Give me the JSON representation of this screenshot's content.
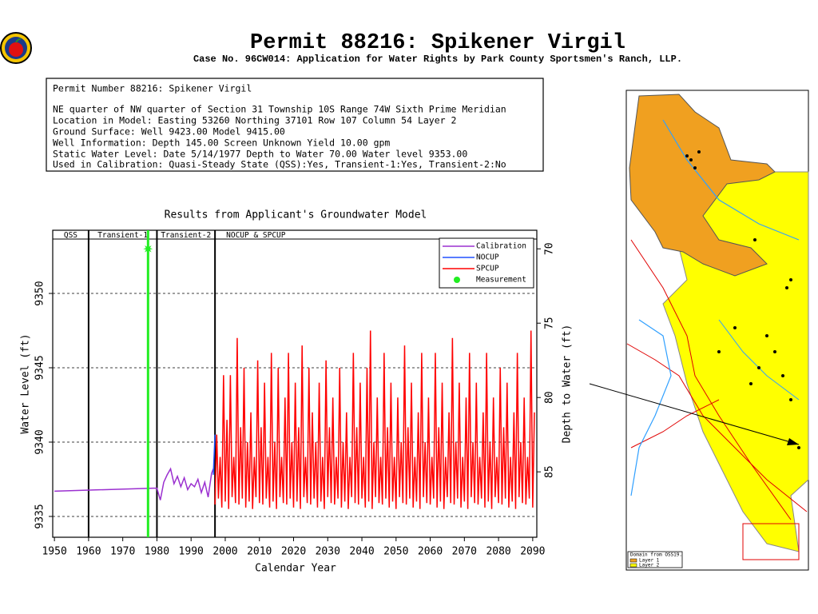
{
  "header": {
    "title": "Permit 88216:  Spikener Virgil",
    "subtitle": "Case No. 96CW014: Application for Water Rights by Park County Sportsmen's Ranch, LLP."
  },
  "info": {
    "lines": [
      "Permit Number 88216: Spikener Virgil",
      "NE quarter of NW quarter of Section 31 Township 10S Range 74W Sixth Prime Meridian",
      "Location in Model: Easting  53260 Northing   37101 Row 107 Column 54 Layer 2",
      "Ground Surface: Well  9423.00 Model  9415.00",
      "Well Information: Depth    145.00 Screen Unknown Yield     10.00 gpm",
      "Static Water Level: Date  5/14/1977 Depth to Water     70.00 Water level  9353.00",
      "Used in Calibration: Quasi-Steady State (QSS):Yes, Transient-1:Yes, Transient-2:No"
    ]
  },
  "map": {
    "legend_title": "Domain from OSS19.",
    "legend_items": [
      "Layer 1",
      "Layer 2"
    ],
    "legend_colors": [
      "#f0a020",
      "#ffff00"
    ]
  },
  "chart_data": {
    "type": "line",
    "title": "Results from Applicant's Groundwater Model",
    "x_label": "Calendar Year",
    "y_label": "Water Level (ft)",
    "y2_label": "Depth to Water (ft)",
    "xlim": [
      1949.5,
      2091.2
    ],
    "xticks": [
      1950,
      1960,
      1970,
      1980,
      1990,
      2000,
      2010,
      2020,
      2030,
      2040,
      2050,
      2060,
      2070,
      2080,
      2090
    ],
    "ylim": [
      9333.6,
      9354.25
    ],
    "yticks": [
      9335,
      9340,
      9345,
      9350
    ],
    "y2lim": [
      89.4,
      68.75
    ],
    "y2ticks": [
      70,
      75,
      80,
      85
    ],
    "grid": true,
    "legend": "upper right",
    "periods": [
      {
        "name": "QSS",
        "end": 1960
      },
      {
        "name": "Transient-1",
        "end": 1980
      },
      {
        "name": "Transient-2",
        "end": 1997
      },
      {
        "name": "NOCUP  & SPCUP"
      }
    ],
    "series": [
      {
        "name": "Calibration",
        "color": "#9b30d0",
        "x": [
          1950,
          1979,
          1980,
          1981,
          1982,
          1983,
          1984,
          1985,
          1986,
          1987,
          1988,
          1989,
          1990,
          1991,
          1992,
          1993,
          1994,
          1995,
          1996,
          1996.5
        ],
        "values": [
          9336.7,
          9336.9,
          9336.9,
          9336.1,
          9337.3,
          9337.8,
          9338.2,
          9337.2,
          9337.7,
          9337.0,
          9337.6,
          9336.8,
          9337.2,
          9337.0,
          9337.5,
          9336.6,
          9337.3,
          9336.3,
          9337.9,
          9338.2
        ]
      },
      {
        "name": "NOCUP",
        "color": "#2050ff",
        "x": [
          1996.5,
          1997
        ],
        "values": [
          9337.8,
          9340.5
        ]
      },
      {
        "name": "SPCUP",
        "color": "#ff0000",
        "x": [
          1997,
          1997.5,
          1998,
          1998.5,
          1999,
          1999.5,
          2000,
          2000.5,
          2001,
          2001.5,
          2002,
          2002.5,
          2003,
          2003.5,
          2004,
          2004.5,
          2005,
          2005.5,
          2006,
          2006.5,
          2007,
          2007.5,
          2008,
          2008.5,
          2009,
          2009.5,
          2010,
          2010.5,
          2011,
          2011.5,
          2012,
          2012.5,
          2013,
          2013.5,
          2014,
          2014.5,
          2015,
          2015.5,
          2016,
          2016.5,
          2017,
          2017.5,
          2018,
          2018.5,
          2019,
          2019.5,
          2020,
          2020.5,
          2021,
          2021.5,
          2022,
          2022.5,
          2023,
          2023.5,
          2024,
          2024.5,
          2025,
          2025.5,
          2026,
          2026.5,
          2027,
          2027.5,
          2028,
          2028.5,
          2029,
          2029.5,
          2030,
          2030.5,
          2031,
          2031.5,
          2032,
          2032.5,
          2033,
          2033.5,
          2034,
          2034.5,
          2035,
          2035.5,
          2036,
          2036.5,
          2037,
          2037.5,
          2038,
          2038.5,
          2039,
          2039.5,
          2040,
          2040.5,
          2041,
          2041.5,
          2042,
          2042.5,
          2043,
          2043.5,
          2044,
          2044.5,
          2045,
          2045.5,
          2046,
          2046.5,
          2047,
          2047.5,
          2048,
          2048.5,
          2049,
          2049.5,
          2050,
          2050.5,
          2051,
          2051.5,
          2052,
          2052.5,
          2053,
          2053.5,
          2054,
          2054.5,
          2055,
          2055.5,
          2056,
          2056.5,
          2057,
          2057.5,
          2058,
          2058.5,
          2059,
          2059.5,
          2060,
          2060.5,
          2061,
          2061.5,
          2062,
          2062.5,
          2063,
          2063.5,
          2064,
          2064.5,
          2065,
          2065.5,
          2066,
          2066.5,
          2067,
          2067.5,
          2068,
          2068.5,
          2069,
          2069.5,
          2070,
          2070.5,
          2071,
          2071.5,
          2072,
          2072.5,
          2073,
          2073.5,
          2074,
          2074.5,
          2075,
          2075.5,
          2076,
          2076.5,
          2077,
          2077.5,
          2078,
          2078.5,
          2079,
          2079.5,
          2080,
          2080.5,
          2081,
          2081.5,
          2082,
          2082.5,
          2083,
          2083.5,
          2084,
          2084.5,
          2085,
          2085.5,
          2086,
          2086.5,
          2087,
          2087.5,
          2088,
          2088.5,
          2089,
          2089.5,
          2090,
          2090.5
        ],
        "values": [
          9335.8,
          9340.5,
          9336.2,
          9339,
          9335.6,
          9344.5,
          9336.0,
          9341.5,
          9335.5,
          9344.5,
          9336.3,
          9339,
          9335.9,
          9347,
          9335.8,
          9341,
          9336.2,
          9345,
          9335.6,
          9340,
          9336.0,
          9342,
          9335.5,
          9339,
          9336.3,
          9345.5,
          9335.9,
          9341,
          9335.8,
          9344,
          9336.2,
          9339,
          9335.6,
          9346,
          9336.0,
          9340,
          9335.5,
          9345,
          9336.3,
          9339,
          9335.9,
          9343,
          9335.8,
          9346,
          9336.2,
          9340,
          9335.6,
          9344,
          9336.0,
          9341,
          9335.5,
          9346.5,
          9336.3,
          9339,
          9335.9,
          9345,
          9335.8,
          9342,
          9336.2,
          9340,
          9335.6,
          9344,
          9336.0,
          9339,
          9335.5,
          9345.5,
          9336.3,
          9341,
          9335.9,
          9343,
          9335.8,
          9339,
          9336.2,
          9345,
          9335.6,
          9340,
          9336.0,
          9342,
          9335.5,
          9339,
          9336.3,
          9346,
          9335.9,
          9341,
          9335.8,
          9344,
          9336.2,
          9339,
          9335.6,
          9345,
          9336.0,
          9347.5,
          9335.5,
          9340,
          9336.3,
          9343,
          9335.9,
          9339,
          9335.8,
          9346,
          9336.2,
          9341,
          9335.6,
          9344,
          9336.0,
          9339,
          9335.5,
          9343,
          9336.3,
          9340,
          9335.9,
          9346.5,
          9335.8,
          9341,
          9336.2,
          9344,
          9335.6,
          9339,
          9336.0,
          9342,
          9335.5,
          9346,
          9336.3,
          9340,
          9335.9,
          9343,
          9335.8,
          9339,
          9336.2,
          9346,
          9335.6,
          9341,
          9336.0,
          9344,
          9335.5,
          9339,
          9336.3,
          9342,
          9335.9,
          9347,
          9335.8,
          9340,
          9336.2,
          9344,
          9335.6,
          9339,
          9336.0,
          9343,
          9335.5,
          9346,
          9336.3,
          9340,
          9335.9,
          9344,
          9335.8,
          9339,
          9336.2,
          9342,
          9335.6,
          9346,
          9336.0,
          9340,
          9335.5,
          9343,
          9336.3,
          9339,
          9335.9,
          9345,
          9335.8,
          9341,
          9336.2,
          9344,
          9335.6,
          9339,
          9336.0,
          9342,
          9335.5,
          9346,
          9336.3,
          9340,
          9335.9,
          9343,
          9335.8,
          9339,
          9336.2,
          9347.5,
          9335.6,
          9342
        ]
      },
      {
        "name": "Measurement",
        "color": "#22ee22",
        "marker": "star",
        "x": [
          1977.4
        ],
        "values": [
          9353
        ]
      }
    ]
  }
}
